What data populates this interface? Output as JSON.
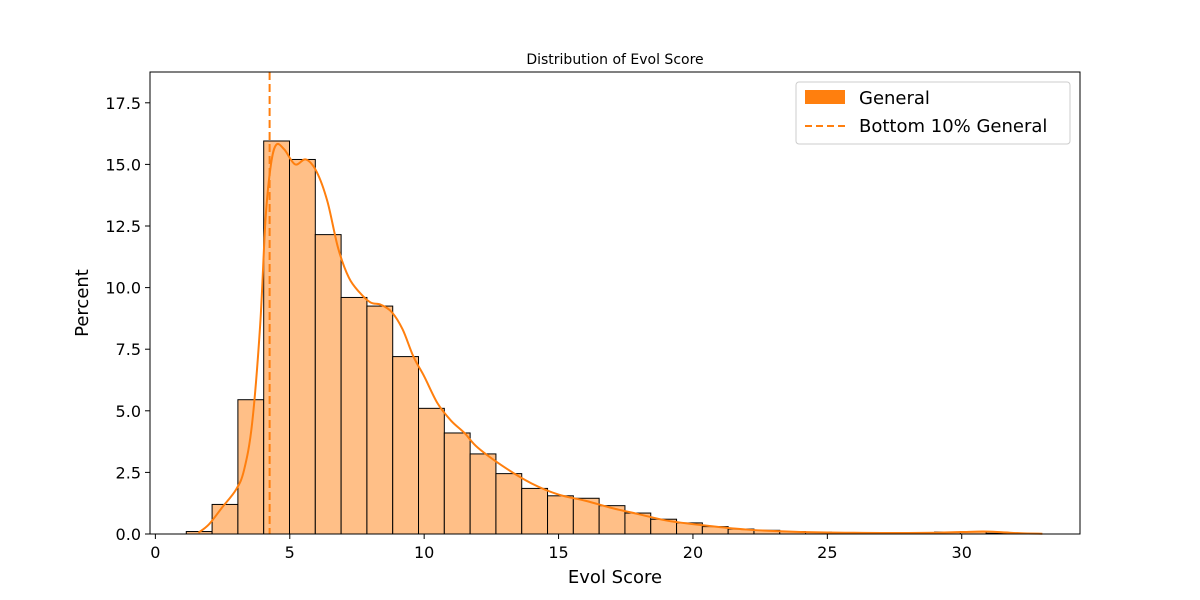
{
  "chart_data": {
    "type": "bar",
    "title": "Distribution of Evol Score",
    "xlabel": "Evol Score",
    "ylabel": "Percent",
    "xlim": [
      -0.2,
      34.4
    ],
    "ylim": [
      0,
      18.75
    ],
    "xticks": [
      0,
      5,
      10,
      15,
      20,
      25,
      30
    ],
    "yticks": [
      0.0,
      2.5,
      5.0,
      7.5,
      10.0,
      12.5,
      15.0,
      17.5
    ],
    "yticks_labels": [
      "0.0",
      "2.5",
      "5.0",
      "7.5",
      "10.0",
      "12.5",
      "15.0",
      "17.5"
    ],
    "grid": false,
    "legend": {
      "position": "top-right",
      "entries": [
        {
          "label": "General",
          "kind": "patch"
        },
        {
          "label": "Bottom 10% General",
          "kind": "dashed-line"
        }
      ]
    },
    "bin_width": 0.96,
    "bins_start": [
      1.15,
      2.11,
      3.07,
      4.03,
      4.99,
      5.95,
      6.91,
      7.87,
      8.83,
      9.79,
      10.75,
      11.71,
      12.67,
      13.63,
      14.59,
      15.55,
      16.51,
      17.47,
      18.43,
      19.39,
      20.35,
      21.31,
      22.27,
      23.23,
      24.19,
      25.15,
      26.11,
      27.07,
      28.03,
      28.99,
      29.95,
      30.91,
      31.87
    ],
    "series": [
      {
        "name": "General",
        "values": [
          0.1,
          1.2,
          5.45,
          15.95,
          15.2,
          12.15,
          9.6,
          9.25,
          7.2,
          5.1,
          4.1,
          3.25,
          2.45,
          1.85,
          1.55,
          1.45,
          1.15,
          0.85,
          0.6,
          0.45,
          0.3,
          0.2,
          0.15,
          0.1,
          0.08,
          0.06,
          0.05,
          0.05,
          0.05,
          0.08,
          0.1,
          0.03,
          0.02
        ]
      }
    ],
    "kde": {
      "x": [
        1.6,
        2.0,
        2.5,
        3.0,
        3.3,
        3.6,
        3.9,
        4.1,
        4.3,
        4.5,
        4.8,
        5.2,
        5.6,
        6.0,
        6.4,
        6.8,
        7.2,
        7.6,
        8.0,
        8.4,
        8.8,
        9.2,
        9.6,
        10.0,
        10.5,
        11.0,
        11.5,
        12.0,
        13.0,
        14.0,
        15.0,
        16.0,
        17.0,
        18.0,
        19.0,
        20.0,
        21.0,
        22.0,
        23.0,
        24.0,
        25.0,
        26.0,
        27.0,
        28.0,
        29.0,
        30.0,
        30.8,
        31.5,
        32.2,
        33.0
      ],
      "y": [
        0.05,
        0.4,
        1.1,
        1.8,
        2.6,
        4.5,
        8.5,
        12.8,
        15.0,
        15.8,
        15.6,
        15.0,
        15.2,
        14.7,
        13.5,
        11.6,
        10.4,
        9.8,
        9.4,
        9.3,
        9.0,
        8.3,
        7.2,
        6.4,
        5.3,
        4.6,
        4.1,
        3.5,
        2.7,
        2.05,
        1.6,
        1.35,
        1.05,
        0.8,
        0.55,
        0.4,
        0.28,
        0.18,
        0.12,
        0.08,
        0.06,
        0.05,
        0.04,
        0.04,
        0.05,
        0.08,
        0.1,
        0.07,
        0.03,
        0.01
      ]
    },
    "reference_line": {
      "name": "Bottom 10% General",
      "x": 4.25,
      "style": "dashed"
    },
    "colors": {
      "bar_fill": "#ffbf87",
      "bar_edge": "#000000",
      "kde": "#ff7f0e",
      "reference": "#ff7f0e",
      "legend_patch": "#ff7f0e"
    }
  }
}
